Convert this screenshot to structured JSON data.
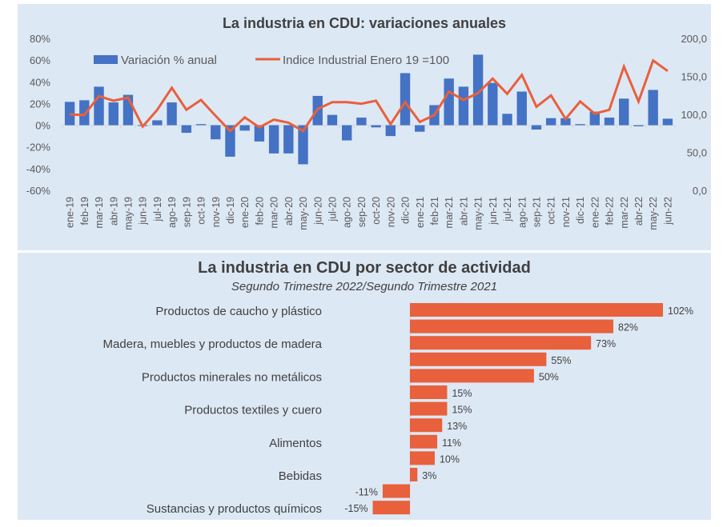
{
  "chart_data": [
    {
      "type": "bar",
      "combo": "bar+line (dual axis)",
      "title": "La industria en CDU: variaciones anuales",
      "legend_position": "top",
      "categories": [
        "ene-19",
        "feb-19",
        "mar-19",
        "abr-19",
        "may-19",
        "jun-19",
        "jul-19",
        "ago-19",
        "sep-19",
        "oct-19",
        "nov-19",
        "dic-19",
        "ene-20",
        "feb-20",
        "mar-20",
        "abr-20",
        "may-20",
        "jun-20",
        "jul-20",
        "ago-20",
        "sep-20",
        "oct-20",
        "nov-20",
        "dic-20",
        "ene-21",
        "feb-21",
        "mar-21",
        "abr-21",
        "may-21",
        "jun-21",
        "jul-21",
        "ago-21",
        "sep-21",
        "oct-21",
        "nov-21",
        "dic-21",
        "ene-22",
        "feb-22",
        "mar-22",
        "abr-22",
        "may-22",
        "jun-22"
      ],
      "series": [
        {
          "name": "Variación % anual",
          "type": "bar",
          "axis": "left",
          "color": "#4472c4",
          "values": [
            21.5,
            23,
            35.5,
            21,
            28,
            0,
            4.5,
            21,
            -7,
            1,
            -13,
            -29,
            -5,
            -15,
            -26,
            -26,
            -36,
            27,
            9.5,
            -14,
            7,
            -2,
            -10,
            48,
            -6,
            18.5,
            43,
            35.5,
            65,
            39,
            10.5,
            31,
            -4,
            6.5,
            6.5,
            1,
            12.5,
            7,
            24.5,
            -1,
            32.5,
            6
          ]
        },
        {
          "name": "Indice Industrial Enero 19 =100",
          "type": "line",
          "axis": "right",
          "color": "#e8603c",
          "values": [
            100,
            99,
            124,
            118,
            122,
            84,
            106,
            135,
            106,
            119,
            98,
            78,
            96,
            83,
            93,
            89,
            78,
            107,
            116,
            116,
            114,
            118,
            87,
            116,
            90,
            99,
            130,
            119,
            128,
            147,
            127,
            152,
            110,
            125,
            94,
            117,
            101,
            106,
            163,
            117,
            171,
            157
          ]
        }
      ],
      "y_left": {
        "ticks": [
          "80%",
          "60%",
          "40%",
          "20%",
          "0%",
          "-20%",
          "-40%",
          "-60%"
        ],
        "ylim": [
          -60,
          80
        ]
      },
      "y_right": {
        "ticks": [
          "200,0",
          "150,0",
          "100,0",
          "50,0",
          "0,0"
        ],
        "ylim": [
          0,
          200
        ]
      },
      "grid": false
    },
    {
      "type": "bar",
      "orientation": "horizontal",
      "title": "La industria en CDU por sector de actividad",
      "subtitle": "Segundo Trimestre 2022/Segundo Trimestre 2021",
      "color": "#e8603c",
      "categories": [
        "Productos de caucho y plástico",
        "",
        "Madera, muebles y productos de madera",
        "",
        "Productos minerales no metálicos",
        "",
        "Productos textiles y cuero",
        "",
        "Alimentos",
        "",
        "Bebidas",
        "",
        "Sustancias y productos químicos"
      ],
      "values": [
        102,
        82,
        73,
        55,
        50,
        15,
        15,
        13,
        11,
        10,
        3,
        -11,
        -15
      ],
      "data_labels": [
        "102%",
        "82%",
        "73%",
        "55%",
        "50%",
        "15%",
        "15%",
        "13%",
        "11%",
        "10%",
        "3%",
        "-11%",
        "-15%"
      ],
      "grid": false
    }
  ]
}
